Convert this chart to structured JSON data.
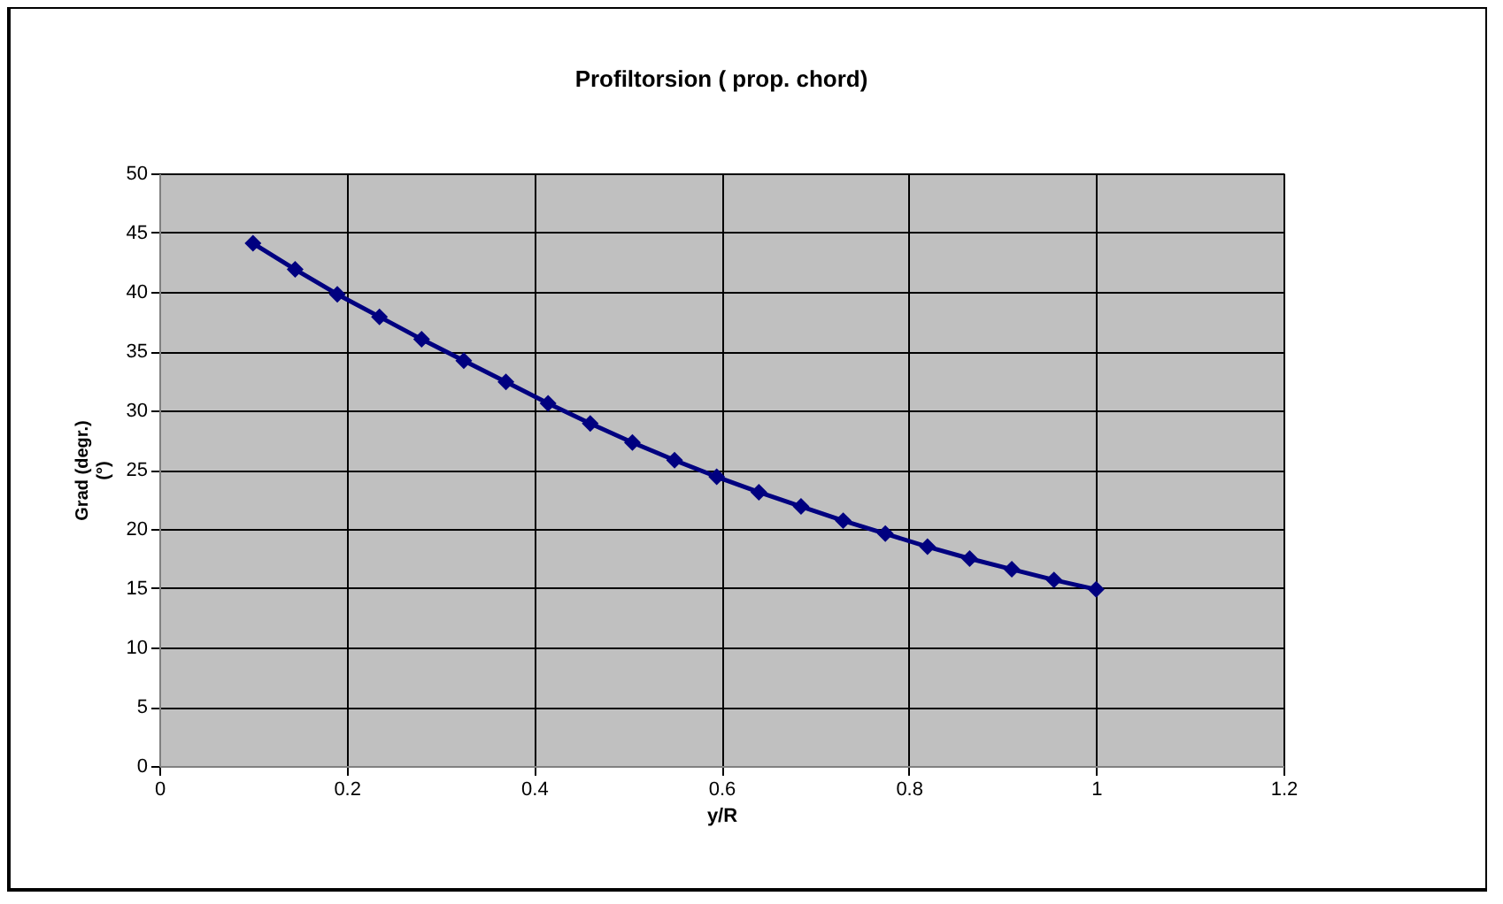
{
  "chart_data": {
    "type": "line",
    "title": "Profiltorsion ( prop. chord)",
    "xlabel": "y/R",
    "ylabel": "Grad (degr.)\n(°)",
    "x": [
      0.1,
      0.145,
      0.19,
      0.235,
      0.28,
      0.325,
      0.37,
      0.415,
      0.46,
      0.505,
      0.55,
      0.595,
      0.64,
      0.685,
      0.73,
      0.775,
      0.82,
      0.865,
      0.91,
      0.955,
      1.0
    ],
    "series": [
      {
        "color": "#000080",
        "values": [
          44.1,
          41.9,
          39.8,
          37.9,
          36.0,
          34.2,
          32.4,
          30.6,
          28.9,
          27.3,
          25.8,
          24.4,
          23.1,
          21.9,
          20.7,
          19.6,
          18.5,
          17.5,
          16.6,
          15.7,
          14.9
        ]
      }
    ],
    "xlim": [
      0,
      1.2
    ],
    "xticks": [
      0,
      0.2,
      0.4,
      0.6,
      0.8,
      1,
      1.2
    ],
    "ylim": [
      0,
      50
    ],
    "yticks": [
      0,
      5,
      10,
      15,
      20,
      25,
      30,
      35,
      40,
      45,
      50
    ],
    "grid": true,
    "marker": "diamond",
    "line_style": "solid"
  }
}
